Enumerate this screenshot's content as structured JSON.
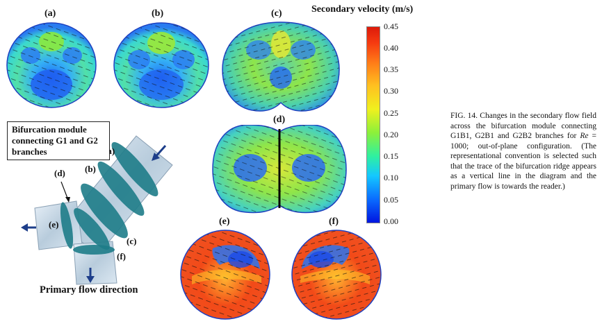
{
  "figure": {
    "colorbar": {
      "title": "Secondary velocity (m/s)",
      "ticks": [
        "0.45",
        "0.40",
        "0.35",
        "0.30",
        "0.25",
        "0.20",
        "0.15",
        "0.10",
        "0.05",
        "0.00"
      ]
    },
    "panels": {
      "a": "(a)",
      "b": "(b)",
      "c": "(c)",
      "d": "(d)",
      "e": "(e)",
      "f": "(f)"
    },
    "module_box": "Bifurcation module connecting G1 and G2 branches",
    "primary_flow": "Primary flow direction",
    "diagram_labels": {
      "a": "(a)",
      "b": "(b)",
      "c": "(c)",
      "d": "(d)",
      "e": "(e)",
      "f": "(f)"
    }
  },
  "caption": {
    "part1": "FIG. 14. Changes in the secondary flow field across the bifurcation module connecting G1B1, G2B1 and G2B2 branches for ",
    "re": "Re",
    "part2": " = 1000; out-of-plane configuration. (The representational convention is selected such that the trace of the bifurcation ridge appears as a vertical line in the diagram and the primary flow is towards the reader.)"
  },
  "colors": {
    "low": "#0a3cf0",
    "mid": "#5ee06a",
    "high": "#e8281a"
  }
}
